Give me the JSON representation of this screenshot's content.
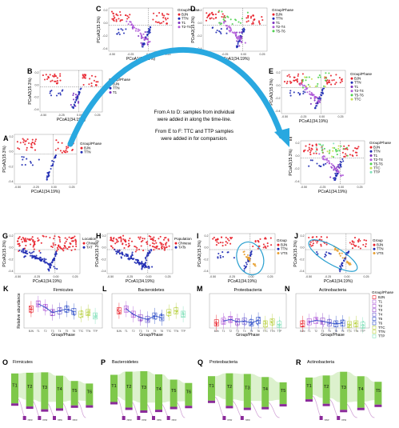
{
  "colors": {
    "BJN": "#e8202a",
    "TTN": "#1f2bb3",
    "T1": "#7b2fbe",
    "T2T4": "#b05ad8",
    "T5T6": "#4fd14f",
    "TTC": "#c8e050",
    "TTP": "#7ee0b8",
    "arrow": "#29a8e0",
    "circle": "#2aa0d0",
    "China": "#e8202a",
    "TAT": "#1f2bb3",
    "box_BJN": "#e8202a",
    "box_T": "#8e44c8",
    "box_T5": "#3050c8",
    "box_TTC": "#b8d040"
  },
  "caption": {
    "line1": "From A to D: samples from individual",
    "line2": "were added in along the time-line.",
    "line3": "From E to F: TTC and TTP samples",
    "line4": "were added in for comparsion."
  },
  "pcoa": {
    "xlabel": "PCoA1(34.19%)",
    "ylabel": "PCoA2(15.3%)",
    "xticks": [
      "-0.50",
      "-0.25",
      "0.00",
      "0.25"
    ],
    "yticks": [
      "0.2",
      "0.0",
      "-0.2",
      "-0.4"
    ]
  },
  "panels": [
    {
      "letter": "A",
      "legend_title": "Group/Phase",
      "legend": [
        {
          "label": "BJN",
          "color": "#e8202a"
        },
        {
          "label": "TTN",
          "color": "#1f2bb3"
        }
      ]
    },
    {
      "letter": "B",
      "legend_title": "Group/Phase",
      "legend": [
        {
          "label": "BJN",
          "color": "#e8202a"
        },
        {
          "label": "TTN",
          "color": "#1f2bb3"
        },
        {
          "label": "T1",
          "color": "#7b2fbe"
        }
      ]
    },
    {
      "letter": "C",
      "legend_title": "Group/Phase",
      "legend": [
        {
          "label": "BJN",
          "color": "#e8202a"
        },
        {
          "label": "TTN",
          "color": "#1f2bb3"
        },
        {
          "label": "T1",
          "color": "#7b2fbe"
        },
        {
          "label": "T2-T4",
          "color": "#b05ad8"
        }
      ]
    },
    {
      "letter": "D",
      "legend_title": "Group/Phase",
      "legend": [
        {
          "label": "BJN",
          "color": "#e8202a"
        },
        {
          "label": "TTN",
          "color": "#1f2bb3"
        },
        {
          "label": "T1",
          "color": "#7b2fbe"
        },
        {
          "label": "T2-T4",
          "color": "#b05ad8"
        },
        {
          "label": "T5-T6",
          "color": "#4fd14f"
        }
      ]
    },
    {
      "letter": "E",
      "legend_title": "Group/Phase",
      "legend": [
        {
          "label": "BJN",
          "color": "#e8202a"
        },
        {
          "label": "TTN",
          "color": "#1f2bb3"
        },
        {
          "label": "T1",
          "color": "#7b2fbe"
        },
        {
          "label": "T2-T4",
          "color": "#b05ad8"
        },
        {
          "label": "T5-T6",
          "color": "#4fd14f"
        },
        {
          "label": "TTC",
          "color": "#c8e050"
        }
      ]
    },
    {
      "letter": "F",
      "legend_title": "Group/Phase",
      "legend": [
        {
          "label": "BJN",
          "color": "#e8202a"
        },
        {
          "label": "TTN",
          "color": "#1f2bb3"
        },
        {
          "label": "T1",
          "color": "#7b2fbe"
        },
        {
          "label": "T2-T4",
          "color": "#b05ad8"
        },
        {
          "label": "T5-T6",
          "color": "#4fd14f"
        },
        {
          "label": "TTC",
          "color": "#c8e050"
        },
        {
          "label": "TTP",
          "color": "#7ee0b8"
        }
      ]
    },
    {
      "letter": "G",
      "legend_title": "Location",
      "legend": [
        {
          "label": "China",
          "color": "#e8202a"
        },
        {
          "label": "TAT",
          "color": "#1f2bb3"
        }
      ]
    },
    {
      "letter": "H",
      "legend_title": "Population",
      "legend": [
        {
          "label": "Chinese",
          "color": "#e8202a"
        },
        {
          "label": "TATs",
          "color": "#1f2bb3"
        }
      ]
    },
    {
      "letter": "I",
      "legend_title": "Group",
      "legend": [
        {
          "label": "BJN",
          "color": "#e8202a"
        },
        {
          "label": "TTN",
          "color": "#1f2bb3"
        },
        {
          "label": "VTS",
          "color": "#e8a030"
        }
      ]
    },
    {
      "letter": "J",
      "legend_title": "Group",
      "legend": [
        {
          "label": "BJN",
          "color": "#e8202a"
        },
        {
          "label": "TTN",
          "color": "#1f2bb3"
        },
        {
          "label": "VTS",
          "color": "#e8a030"
        }
      ]
    }
  ],
  "box_panels": [
    {
      "letter": "K",
      "title": "Firmicutes",
      "ylabel": "Relative abundance",
      "xlabel": "Group/Phase"
    },
    {
      "letter": "L",
      "title": "Bacteroidetes",
      "xlabel": "Group/Phase"
    },
    {
      "letter": "M",
      "title": "Proteobacteria",
      "xlabel": "Group/Phase"
    },
    {
      "letter": "N",
      "title": "Actinobacteria",
      "xlabel": "Group/Phase"
    }
  ],
  "box_categories": [
    "BJN",
    "T1",
    "T2",
    "T3",
    "T4",
    "T5",
    "T6",
    "TTC",
    "TTN",
    "TTP"
  ],
  "box_legend": {
    "title": "Group/Phase",
    "items": [
      {
        "label": "BJN",
        "color": "#e8202a"
      },
      {
        "label": "T1",
        "color": "#b05ad8"
      },
      {
        "label": "T2",
        "color": "#b05ad8"
      },
      {
        "label": "T3",
        "color": "#8e44c8"
      },
      {
        "label": "T4",
        "color": "#6a5ad0"
      },
      {
        "label": "T5",
        "color": "#3050c8"
      },
      {
        "label": "T6",
        "color": "#3050c8"
      },
      {
        "label": "TTC",
        "color": "#b8d040"
      },
      {
        "label": "TTN",
        "color": "#b8d040"
      },
      {
        "label": "TTP",
        "color": "#7ee0b8"
      }
    ]
  },
  "flow_panels": [
    {
      "letter": "O",
      "title": "Firmicutes",
      "bars": [
        "T1",
        "T2",
        "T3",
        "T4",
        "T5",
        "T6"
      ],
      "new_labels": [
        "new",
        "new",
        "new",
        "new"
      ]
    },
    {
      "letter": "P",
      "title": "Bacteroidetes",
      "bars": [
        "T1",
        "T2",
        "T3",
        "T4",
        "T5",
        "T6"
      ],
      "new_labels": [
        "new",
        "new",
        "new",
        "new"
      ]
    },
    {
      "letter": "Q",
      "title": "Proteobacteria",
      "bars": [
        "T1",
        "T2",
        "T3",
        "T4",
        "T5"
      ],
      "new_labels": [
        "new",
        "new"
      ]
    },
    {
      "letter": "R",
      "title": "Actinobacteria",
      "bars": [
        "T1",
        "T2",
        "T3",
        "T4",
        "T5"
      ],
      "new_labels": [
        "new",
        "new"
      ]
    }
  ]
}
